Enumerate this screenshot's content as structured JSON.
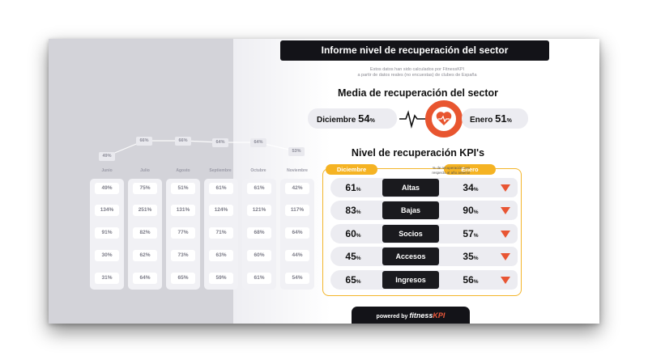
{
  "title": "Informe nivel de recuperación del sector",
  "note_line1": "Estos datos han sido calculados por FitnessKPI",
  "note_line2": "a partir de datos reales (no encuestas) de clubes de España",
  "average": {
    "title": "Media de recuperación del sector",
    "left_label": "Diciembre",
    "left_value": "54",
    "right_label": "Enero",
    "right_value": "51",
    "pct": "%"
  },
  "kpi": {
    "title": "Nivel de recuperación KPI's",
    "col_left": "Diciembre",
    "col_right": "Enero",
    "sub_line1": "% de recuperación con",
    "sub_line2": "respecto al año anterior",
    "rows": [
      {
        "label": "Altas",
        "dic": "61",
        "ene": "34"
      },
      {
        "label": "Bajas",
        "dic": "83",
        "ene": "90"
      },
      {
        "label": "Socios",
        "dic": "60",
        "ene": "57"
      },
      {
        "label": "Accesos",
        "dic": "45",
        "ene": "35"
      },
      {
        "label": "Ingresos",
        "dic": "65",
        "ene": "56"
      }
    ],
    "trend_icon": "down-arrow-icon",
    "trend_color": "#e85533"
  },
  "history": {
    "trend_values": [
      "49%",
      "66%",
      "66%",
      "64%",
      "64%",
      "53%"
    ],
    "months": [
      "Junio",
      "Julio",
      "Agosto",
      "Septiembre",
      "Octubre",
      "Noviembre"
    ],
    "columns": [
      [
        "49%",
        "134%",
        "91%",
        "30%",
        "31%"
      ],
      [
        "75%",
        "251%",
        "82%",
        "62%",
        "64%"
      ],
      [
        "51%",
        "131%",
        "77%",
        "73%",
        "65%"
      ],
      [
        "61%",
        "124%",
        "71%",
        "63%",
        "59%"
      ],
      [
        "61%",
        "121%",
        "68%",
        "60%",
        "61%"
      ],
      [
        "42%",
        "117%",
        "64%",
        "44%",
        "54%"
      ]
    ]
  },
  "footer": {
    "powered": "powered by",
    "brand_a": "fitness",
    "brand_b": "KPI"
  },
  "colors": {
    "accent": "#f5b323",
    "ring": "#e8552f",
    "dark": "#131318"
  }
}
